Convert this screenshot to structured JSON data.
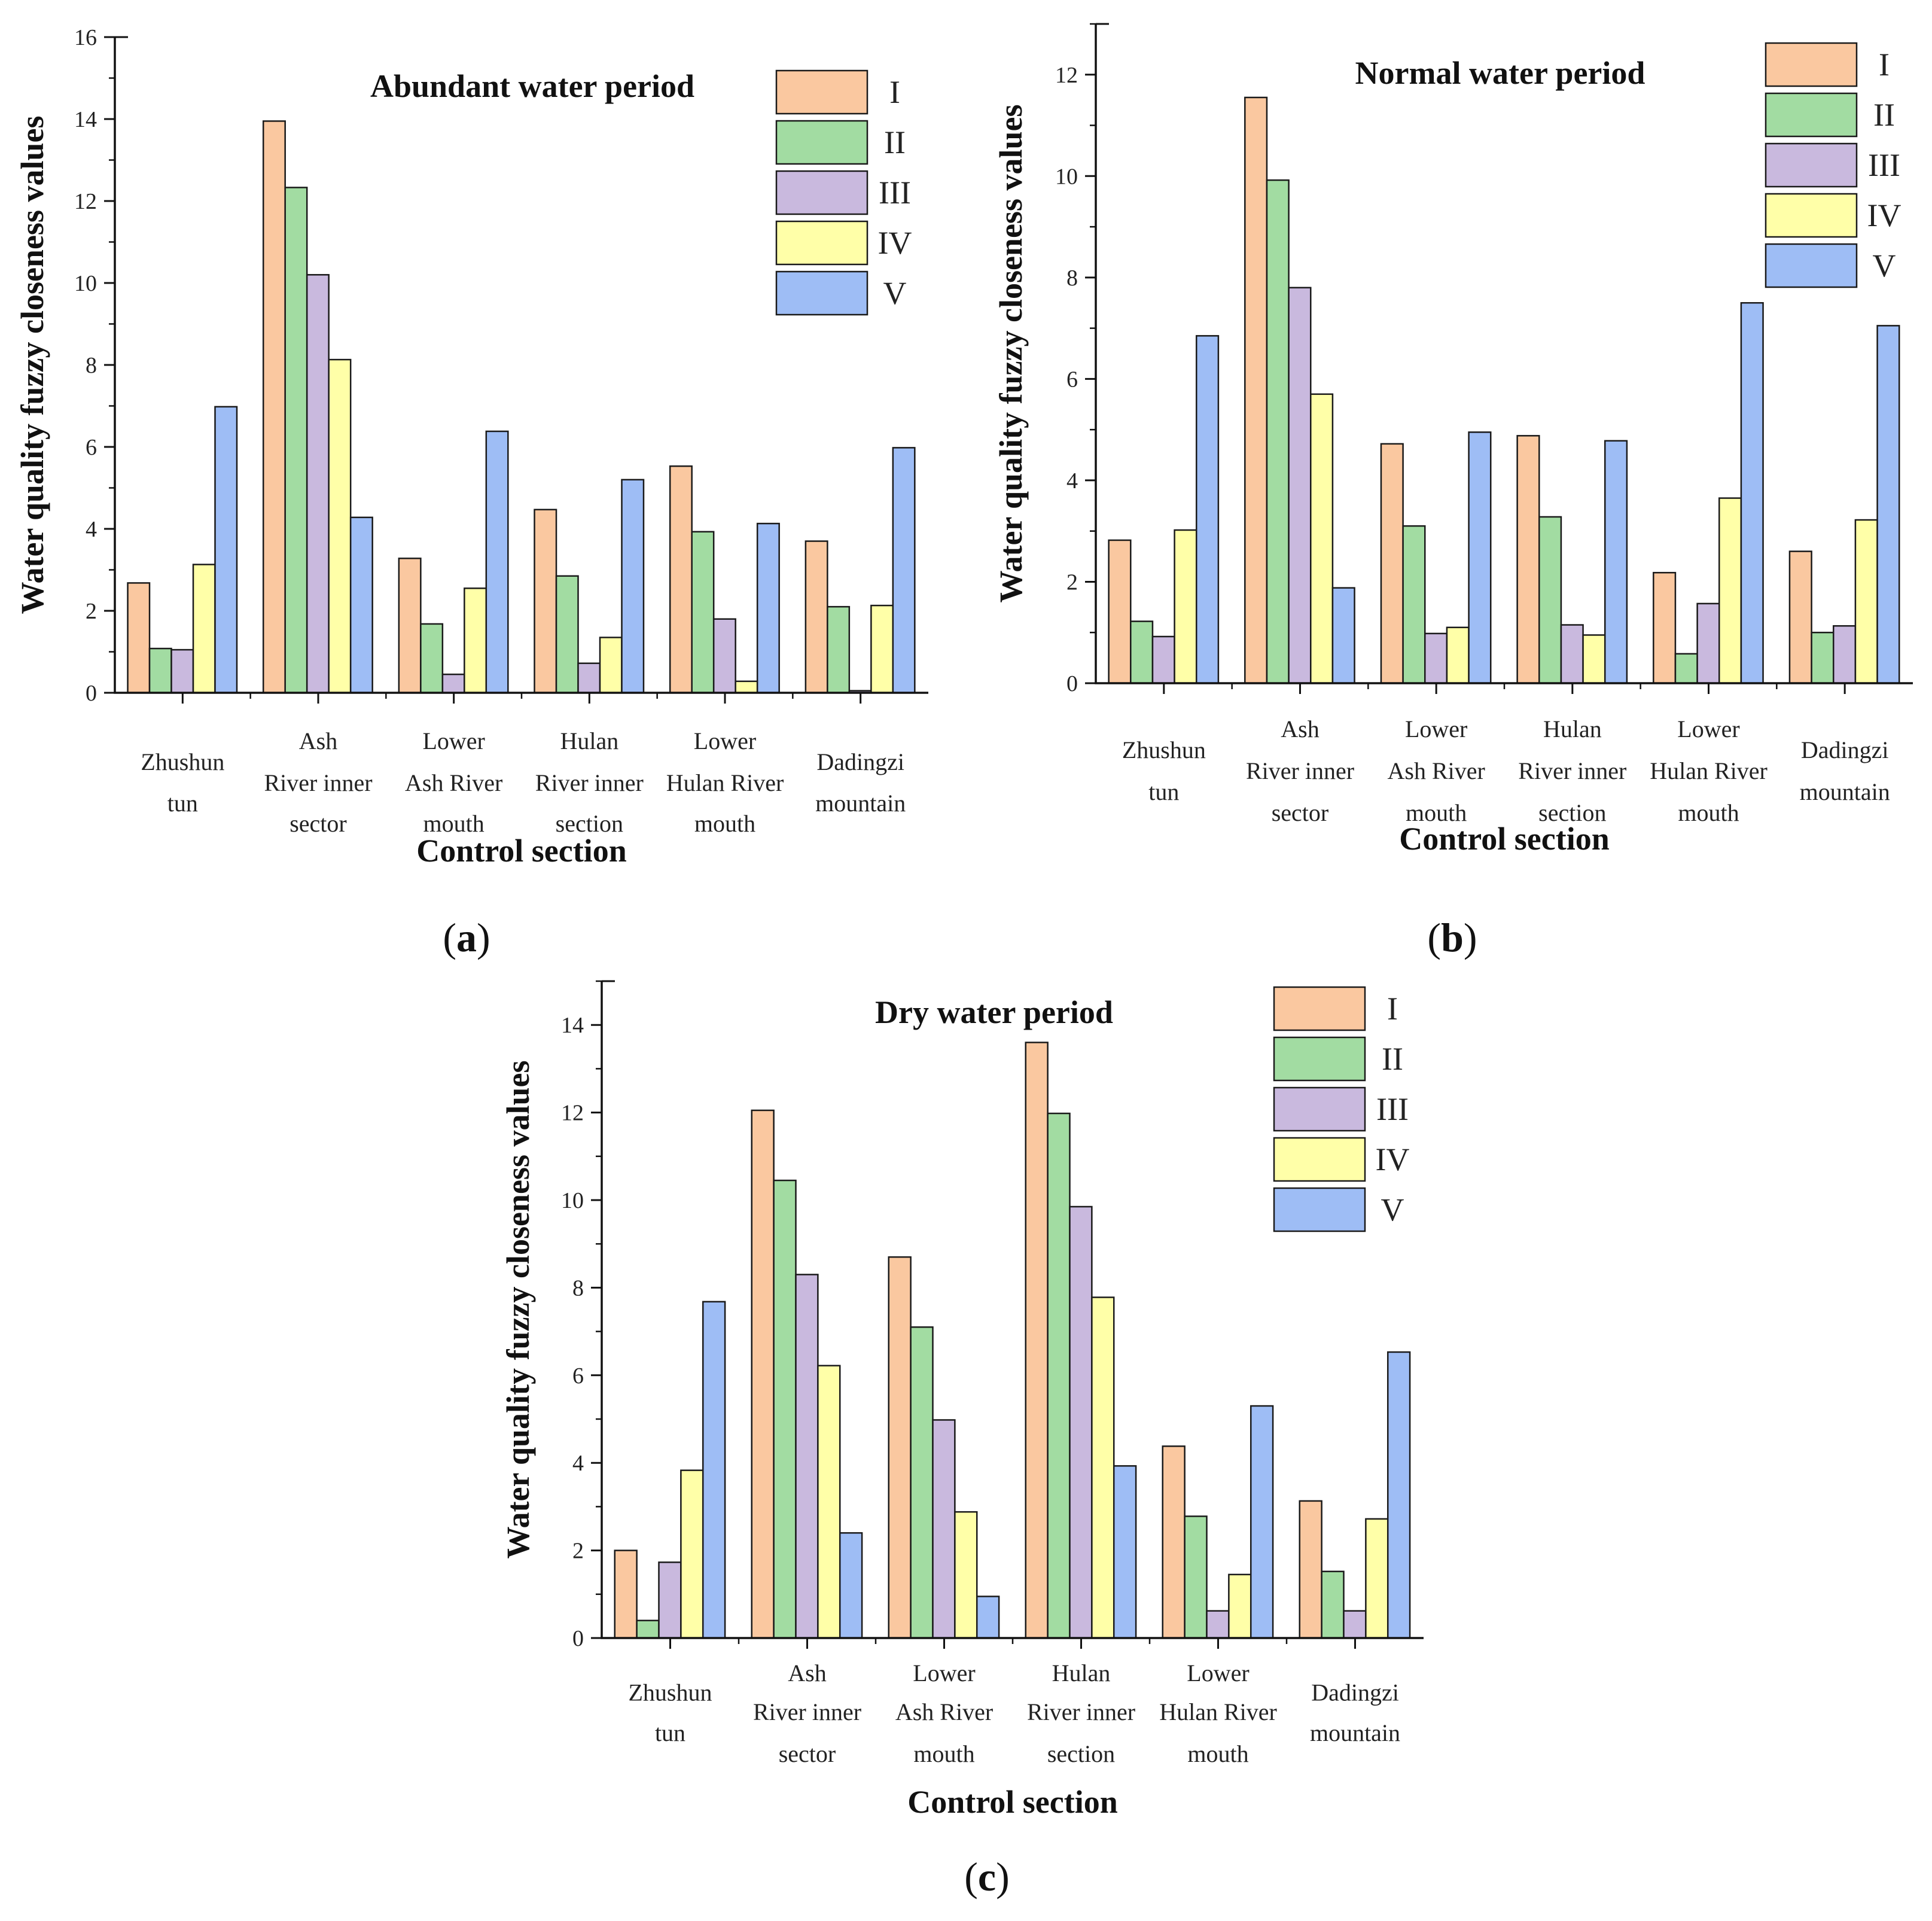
{
  "chart_data": [
    {
      "type": "bar",
      "panel_label": "a",
      "title": "Abundant water period",
      "xlabel": "Control section",
      "ylabel": "Water quality fuzzy closeness values",
      "ylim": [
        0,
        16
      ],
      "yticks": [
        0,
        2,
        4,
        6,
        8,
        10,
        12,
        14,
        16
      ],
      "categories": [
        [
          "Zhushun",
          "tun"
        ],
        [
          "Ash",
          "River inner",
          "sector"
        ],
        [
          "Lower",
          "Ash River",
          "mouth"
        ],
        [
          "Hulan",
          "River inner",
          "section"
        ],
        [
          "Lower",
          "Hulan River",
          "mouth"
        ],
        [
          "Dadingzi",
          "mountain"
        ]
      ],
      "series": [
        {
          "name": "I",
          "color": "#FAC8A0",
          "values": [
            2.68,
            13.95,
            3.28,
            4.47,
            5.53,
            3.7
          ]
        },
        {
          "name": "II",
          "color": "#A2DCA2",
          "values": [
            1.08,
            12.33,
            1.68,
            2.85,
            3.93,
            2.1
          ]
        },
        {
          "name": "III",
          "color": "#C9B9DE",
          "values": [
            1.05,
            10.2,
            0.45,
            0.72,
            1.8,
            0.05
          ]
        },
        {
          "name": "IV",
          "color": "#FFFFA8",
          "values": [
            3.13,
            8.13,
            2.55,
            1.35,
            0.28,
            2.13
          ]
        },
        {
          "name": "V",
          "color": "#9EBDF5",
          "values": [
            6.98,
            4.28,
            6.38,
            5.2,
            4.13,
            5.98
          ]
        }
      ],
      "legend_position": "top-right"
    },
    {
      "type": "bar",
      "panel_label": "b",
      "title": "Normal water period",
      "xlabel": "Control section",
      "ylabel": "Water quality fuzzy closeness values",
      "ylim": [
        0,
        13
      ],
      "yticks": [
        0,
        2,
        4,
        6,
        8,
        10,
        12
      ],
      "categories": [
        [
          "Zhushun",
          "tun"
        ],
        [
          "Ash",
          "River inner",
          "sector"
        ],
        [
          "Lower",
          "Ash River",
          "mouth"
        ],
        [
          "Hulan",
          "River inner",
          "section"
        ],
        [
          "Lower",
          "Hulan River",
          "mouth"
        ],
        [
          "Dadingzi",
          "mountain"
        ]
      ],
      "series": [
        {
          "name": "I",
          "color": "#FAC8A0",
          "values": [
            2.82,
            11.55,
            4.72,
            4.88,
            2.18,
            2.6
          ]
        },
        {
          "name": "II",
          "color": "#A2DCA2",
          "values": [
            1.22,
            9.92,
            3.1,
            3.28,
            0.58,
            1.0
          ]
        },
        {
          "name": "III",
          "color": "#C9B9DE",
          "values": [
            0.92,
            7.8,
            0.98,
            1.15,
            1.57,
            1.13
          ]
        },
        {
          "name": "IV",
          "color": "#FFFFA8",
          "values": [
            3.02,
            5.7,
            1.1,
            0.95,
            3.65,
            3.22
          ]
        },
        {
          "name": "V",
          "color": "#9EBDF5",
          "values": [
            6.85,
            1.88,
            4.95,
            4.78,
            7.5,
            7.05
          ]
        }
      ],
      "legend_position": "top-right"
    },
    {
      "type": "bar",
      "panel_label": "c",
      "title": "Dry water period",
      "xlabel": "Control section",
      "ylabel": "Water quality fuzzy closeness values",
      "ylim": [
        0,
        15
      ],
      "yticks": [
        0,
        2,
        4,
        6,
        8,
        10,
        12,
        14
      ],
      "categories": [
        [
          "Zhushun",
          "tun"
        ],
        [
          "Ash",
          "River inner",
          "sector"
        ],
        [
          "Lower",
          "Ash River",
          "mouth"
        ],
        [
          "Hulan",
          "River inner",
          "section"
        ],
        [
          "Lower",
          "Hulan River",
          "mouth"
        ],
        [
          "Dadingzi",
          "mountain"
        ]
      ],
      "series": [
        {
          "name": "I",
          "color": "#FAC8A0",
          "values": [
            2.0,
            12.05,
            8.7,
            13.6,
            4.38,
            3.13
          ]
        },
        {
          "name": "II",
          "color": "#A2DCA2",
          "values": [
            0.4,
            10.45,
            7.1,
            11.98,
            2.78,
            1.52
          ]
        },
        {
          "name": "III",
          "color": "#C9B9DE",
          "values": [
            1.73,
            8.3,
            4.98,
            9.85,
            0.62,
            0.62
          ]
        },
        {
          "name": "IV",
          "color": "#FFFFA8",
          "values": [
            3.83,
            6.22,
            2.88,
            7.78,
            1.45,
            2.72
          ]
        },
        {
          "name": "V",
          "color": "#9EBDF5",
          "values": [
            7.68,
            2.4,
            0.95,
            3.93,
            5.3,
            6.53
          ]
        }
      ],
      "legend_position": "top-right"
    }
  ]
}
